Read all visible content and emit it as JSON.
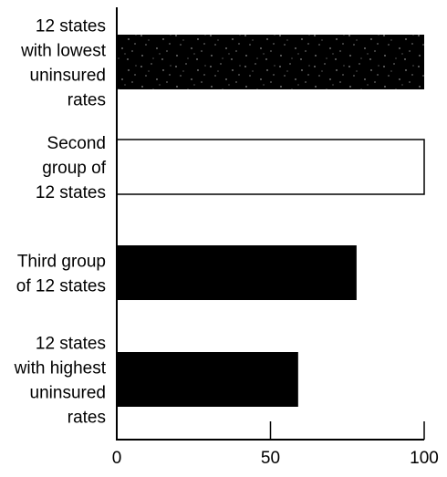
{
  "chart_data": {
    "type": "bar",
    "orientation": "horizontal",
    "categories": [
      [
        "12 states",
        "with lowest",
        "uninsured",
        "rates"
      ],
      [
        "Second",
        "group of",
        "12 states"
      ],
      [
        "Third group",
        "of 12 states"
      ],
      [
        "12 states",
        "with highest",
        "uninsured",
        "rates"
      ]
    ],
    "values": [
      100,
      100,
      78,
      59
    ],
    "bar_styles": [
      "speckled",
      "outline",
      "solid",
      "solid"
    ],
    "x_ticks": [
      "0",
      "50",
      "100"
    ],
    "x_tick_values": [
      0,
      50,
      100
    ],
    "xlim": [
      0,
      100
    ],
    "title": "",
    "xlabel": "",
    "ylabel": "",
    "grid": false,
    "legend": "none"
  },
  "colors": {
    "bar_fill": "#000000",
    "outline": "#000000",
    "background": "#ffffff",
    "speckle": "#cfcfcf"
  }
}
